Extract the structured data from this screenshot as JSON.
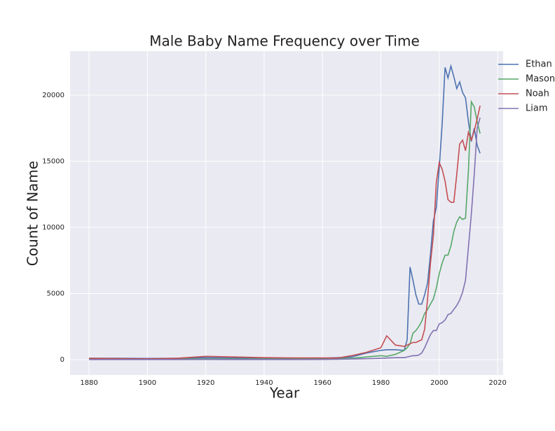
{
  "chart_data": {
    "type": "line",
    "title": "Male Baby Name Frequency over Time",
    "xlabel": "Year",
    "ylabel": "Count of Name",
    "x": [
      1880,
      1890,
      1900,
      1910,
      1920,
      1930,
      1940,
      1950,
      1960,
      1965,
      1970,
      1975,
      1980,
      1982,
      1985,
      1988,
      1989,
      1990,
      1991,
      1992,
      1993,
      1994,
      1995,
      1996,
      1997,
      1998,
      1999,
      2000,
      2001,
      2002,
      2003,
      2004,
      2005,
      2006,
      2007,
      2008,
      2009,
      2010,
      2011,
      2012,
      2013,
      2014
    ],
    "series": [
      {
        "name": "Ethan",
        "color": "#4c72b0",
        "values": [
          100,
          100,
          90,
          100,
          150,
          120,
          110,
          100,
          110,
          150,
          200,
          500,
          700,
          750,
          750,
          700,
          1500,
          7000,
          6000,
          4900,
          4200,
          4200,
          4900,
          5800,
          8000,
          10500,
          11500,
          14500,
          17800,
          22100,
          21300,
          22200,
          21400,
          20500,
          21000,
          20200,
          19800,
          18000,
          16500,
          17500,
          16200,
          15600
        ]
      },
      {
        "name": "Mason",
        "color": "#55a868",
        "values": [
          20,
          30,
          40,
          50,
          60,
          50,
          50,
          50,
          60,
          80,
          100,
          200,
          300,
          250,
          400,
          700,
          900,
          1200,
          2000,
          2200,
          2500,
          2900,
          3500,
          3800,
          4200,
          4600,
          5400,
          6500,
          7300,
          7900,
          7900,
          8600,
          9700,
          10400,
          10800,
          10600,
          10700,
          14300,
          19500,
          19100,
          18000,
          17100
        ]
      },
      {
        "name": "Noah",
        "color": "#c44e52",
        "values": [
          100,
          80,
          60,
          100,
          250,
          200,
          150,
          130,
          130,
          120,
          300,
          550,
          900,
          1800,
          1100,
          1000,
          1100,
          1200,
          1300,
          1300,
          1400,
          1500,
          2300,
          4600,
          7300,
          9400,
          13400,
          14900,
          14400,
          13500,
          12100,
          11900,
          11900,
          14000,
          16300,
          16600,
          15800,
          17200,
          16600,
          17300,
          18200,
          19200
        ]
      },
      {
        "name": "Liam",
        "color": "#8172b2",
        "values": [
          10,
          10,
          10,
          10,
          15,
          10,
          10,
          10,
          15,
          30,
          50,
          70,
          100,
          120,
          150,
          150,
          200,
          250,
          300,
          300,
          350,
          500,
          900,
          1400,
          1900,
          2200,
          2200,
          2700,
          2800,
          3000,
          3400,
          3500,
          3800,
          4100,
          4500,
          5100,
          6000,
          8500,
          11000,
          14000,
          17500,
          18300
        ]
      }
    ],
    "xlim": [
      1873.5,
      2021.9
    ],
    "ylim": [
      -1164,
      23333
    ],
    "xticks": [
      1880,
      1900,
      1920,
      1940,
      1960,
      1980,
      2000,
      2020
    ],
    "yticks": [
      0,
      5000,
      10000,
      15000,
      20000
    ],
    "grid": true
  }
}
